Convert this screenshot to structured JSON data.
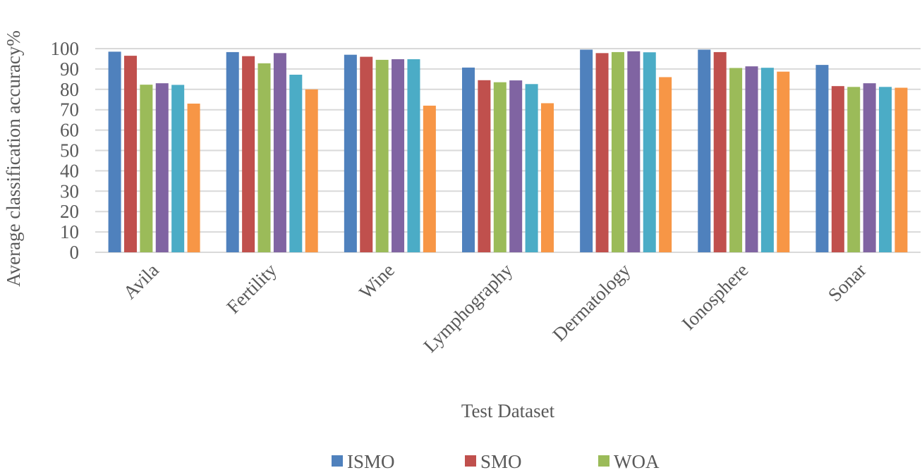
{
  "chart_data": {
    "type": "bar",
    "title": "",
    "xlabel": "Test Dataset",
    "ylabel": "Average classification accuracy%",
    "ylim": [
      0,
      100
    ],
    "yticks": [
      0,
      10,
      20,
      30,
      40,
      50,
      60,
      70,
      80,
      90,
      100
    ],
    "grid": true,
    "legend_position": "bottom",
    "categories": [
      "Avila",
      "Fertility",
      "Wine",
      "Lymphography",
      "Dermatology",
      "Ionosphere",
      "Sonar"
    ],
    "series": [
      {
        "name": "ISMO",
        "color": "#4f81bd",
        "values": [
          98.5,
          98.3,
          97.0,
          90.7,
          99.5,
          99.5,
          92.0
        ]
      },
      {
        "name": "SMO",
        "color": "#c0504d",
        "values": [
          96.5,
          96.3,
          96.0,
          84.5,
          97.8,
          98.3,
          81.6
        ]
      },
      {
        "name": "WOA",
        "color": "#9bbb59",
        "values": [
          82.3,
          92.8,
          94.5,
          83.5,
          98.3,
          90.5,
          81.2
        ]
      },
      {
        "color": "#8064a2",
        "values": [
          83.0,
          97.8,
          94.8,
          84.4,
          98.7,
          91.3,
          83.0
        ]
      },
      {
        "color": "#4bacc6",
        "values": [
          82.2,
          87.2,
          94.8,
          82.6,
          98.2,
          90.6,
          81.2
        ]
      },
      {
        "color": "#f79646",
        "values": [
          73.0,
          80.0,
          72.0,
          73.2,
          86.0,
          88.7,
          80.8
        ]
      }
    ]
  }
}
